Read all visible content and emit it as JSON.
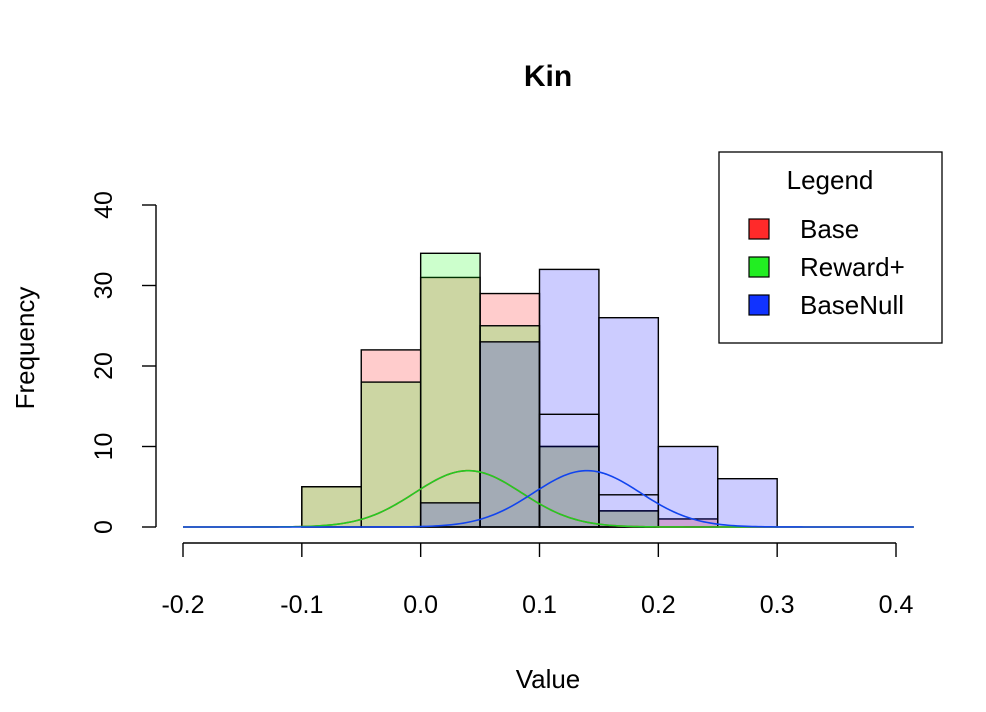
{
  "chart_data": {
    "type": "histogram",
    "title": "Kin",
    "xlabel": "Value",
    "ylabel": "Frequency",
    "xlim": [
      -0.2,
      0.4
    ],
    "ylim": [
      0,
      40
    ],
    "x_ticks": [
      "-0.2",
      "-0.1",
      "0.0",
      "0.1",
      "0.2",
      "0.3",
      "0.4"
    ],
    "y_ticks": [
      "0",
      "10",
      "20",
      "30",
      "40"
    ],
    "bin_width": 0.05,
    "grid": false,
    "legend": {
      "title": "Legend",
      "position": "top-right",
      "entries": [
        {
          "label": "Base",
          "color": "#ff2a2a"
        },
        {
          "label": "Reward+",
          "color": "#22ee22"
        },
        {
          "label": "BaseNull",
          "color": "#1133ff"
        }
      ]
    },
    "series": [
      {
        "name": "Base",
        "fill_color": "#ff0000",
        "fill_opacity": 0.2,
        "curve_color": "#dd2222",
        "bins": [
          {
            "x0": -0.1,
            "x1": -0.05,
            "count": 5
          },
          {
            "x0": -0.05,
            "x1": 0.0,
            "count": 22
          },
          {
            "x0": 0.0,
            "x1": 0.05,
            "count": 31
          },
          {
            "x0": 0.05,
            "x1": 0.1,
            "count": 29
          },
          {
            "x0": 0.1,
            "x1": 0.15,
            "count": 10
          },
          {
            "x0": 0.15,
            "x1": 0.2,
            "count": 2
          },
          {
            "x0": 0.2,
            "x1": 0.25,
            "count": 1
          }
        ],
        "curve": {
          "mean": 0.04,
          "sd": 0.045,
          "peak": 7
        }
      },
      {
        "name": "Reward+",
        "fill_color": "#00ff00",
        "fill_opacity": 0.2,
        "curve_color": "#22cc22",
        "bins": [
          {
            "x0": -0.1,
            "x1": -0.05,
            "count": 5
          },
          {
            "x0": -0.05,
            "x1": 0.0,
            "count": 18
          },
          {
            "x0": 0.0,
            "x1": 0.05,
            "count": 34
          },
          {
            "x0": 0.05,
            "x1": 0.1,
            "count": 25
          },
          {
            "x0": 0.1,
            "x1": 0.15,
            "count": 10
          },
          {
            "x0": 0.15,
            "x1": 0.2,
            "count": 2
          },
          {
            "x0": 0.2,
            "x1": 0.25,
            "count": 0
          }
        ],
        "curve": {
          "mean": 0.04,
          "sd": 0.045,
          "peak": 7
        }
      },
      {
        "name": "BaseNull",
        "fill_color": "#0000ff",
        "fill_opacity": 0.2,
        "curve_color": "#1144ee",
        "bins": [
          {
            "x0": 0.0,
            "x1": 0.05,
            "count": 3
          },
          {
            "x0": 0.05,
            "x1": 0.1,
            "count": 23
          },
          {
            "x0": 0.1,
            "x1": 0.15,
            "count": 32
          },
          {
            "x0": 0.15,
            "x1": 0.2,
            "count": 26
          },
          {
            "x0": 0.2,
            "x1": 0.25,
            "count": 10
          },
          {
            "x0": 0.25,
            "x1": 0.3,
            "count": 6
          }
        ],
        "curve": {
          "mean": 0.14,
          "sd": 0.045,
          "peak": 7
        }
      }
    ],
    "extra_bar_outlines": [
      {
        "x0": 0.1,
        "x1": 0.15,
        "count": 14
      },
      {
        "x0": 0.15,
        "x1": 0.2,
        "count": 4
      }
    ]
  }
}
